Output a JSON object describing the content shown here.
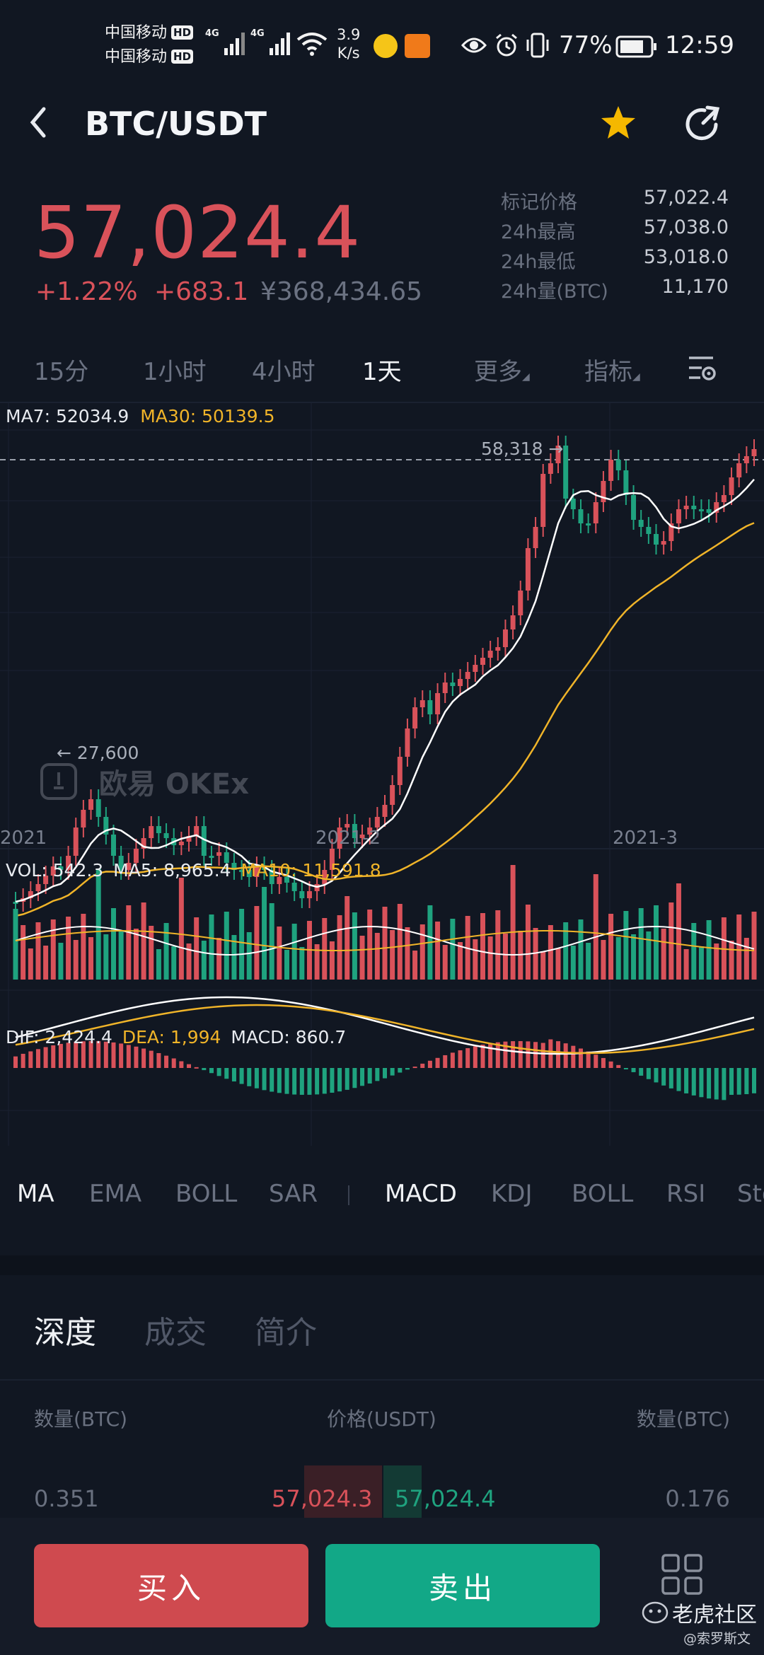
{
  "status_bar": {
    "carrier1": "中国移动",
    "carrier2": "中国移动",
    "hd": "HD",
    "net1": "4G",
    "net2": "4G",
    "speed_value": "3.9",
    "speed_unit": "K/s",
    "battery": "77%",
    "time": "12:59"
  },
  "header": {
    "pair": "BTC/USDT"
  },
  "ticker": {
    "last_price": "57,024.4",
    "change_pct": "+1.22%",
    "change_abs": "+683.1",
    "cny_price": "¥368,434.65",
    "stats": [
      {
        "label": "标记价格",
        "value": "57,022.4"
      },
      {
        "label": "24h最高",
        "value": "57,038.0"
      },
      {
        "label": "24h最低",
        "value": "53,018.0"
      },
      {
        "label": "24h量(BTC)",
        "value": "11,170"
      }
    ]
  },
  "timeframes": {
    "items": [
      "15分",
      "1小时",
      "4小时",
      "1天",
      "更多",
      "指标"
    ],
    "active": "1天"
  },
  "main_chart": {
    "ma7_label": "MA7: 52034.9",
    "ma30_label": "MA30: 50139.5",
    "high_marker": "58,318 →",
    "low_marker": "← 27,600",
    "watermark": "欧易 OKEx",
    "x_labels": [
      "2021",
      "2021-2",
      "2021-3"
    ]
  },
  "volume_chart": {
    "vol_label": "VOL: 542.3",
    "ma5_label": "MA5: 8,965.4",
    "ma10_label": "MA10: 11,591.8"
  },
  "macd_chart": {
    "dif_label": "DIF: 2,424.4",
    "dea_label": "DEA: 1,994",
    "macd_label": "MACD: 860.7"
  },
  "indicator_tabs": {
    "main": [
      "MA",
      "EMA",
      "BOLL",
      "SAR"
    ],
    "sub": [
      "MACD",
      "KDJ",
      "BOLL",
      "RSI",
      "Sto"
    ],
    "active_main": "MA",
    "active_sub": "MACD"
  },
  "sub_tabs": {
    "items": [
      "深度",
      "成交",
      "简介"
    ],
    "active": "深度"
  },
  "order_book": {
    "headers": [
      "数量(BTC)",
      "价格(USDT)",
      "数量(BTC)"
    ],
    "row": {
      "bid_qty": "0.351",
      "bid_price": "57,024.3",
      "ask_price": "57,024.4",
      "ask_qty": "0.176"
    }
  },
  "actions": {
    "buy": "买入",
    "sell": "卖出"
  },
  "watermark_bottom": {
    "brand": "老虎社区",
    "user": "@索罗斯文"
  },
  "colors": {
    "up": "#d9525a",
    "down": "#1fa37f",
    "ma_white": "#ffffff",
    "ma_yellow": "#f0b429",
    "buy_button": "#cf4a4f",
    "sell_button": "#12a887",
    "star": "#f5b800"
  },
  "chart_data": [
    {
      "type": "candlestick",
      "x_labels": [
        "2021",
        "2021-2",
        "2021-3"
      ],
      "high_marker": 58318,
      "low_marker": 27600,
      "series": [
        {
          "name": "MA7",
          "last": 52034.9
        },
        {
          "name": "MA30",
          "last": 50139.5
        }
      ]
    },
    {
      "type": "bar",
      "series": [
        {
          "name": "VOL",
          "last": 542.3
        },
        {
          "name": "MA5",
          "last": 8965.4
        },
        {
          "name": "MA10",
          "last": 11591.8
        }
      ]
    },
    {
      "type": "bar",
      "series": [
        {
          "name": "DIF",
          "last": 2424.4
        },
        {
          "name": "DEA",
          "last": 1994
        },
        {
          "name": "MACD",
          "last": 860.7
        }
      ]
    }
  ]
}
